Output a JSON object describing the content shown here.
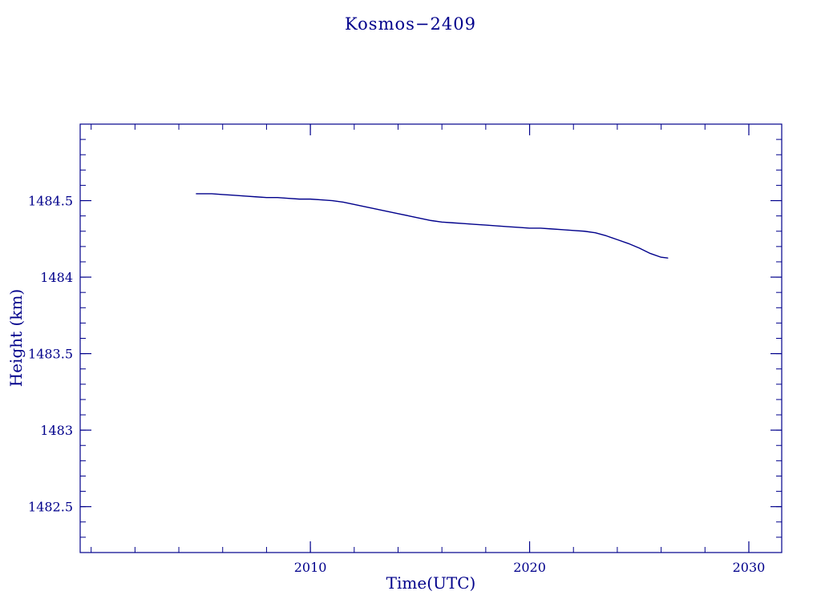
{
  "page": {
    "title": "Kosmos−2409",
    "background": "#ffffff",
    "accent": "#00008B"
  },
  "chart_data": {
    "type": "line",
    "title": "Kosmos−2409",
    "xlabel": "Time(UTC)",
    "ylabel": "Height (km)",
    "xlim": [
      1999.5,
      2031.5
    ],
    "ylim": [
      1482.2,
      1485.0
    ],
    "x_ticks": [
      2010,
      2020,
      2030
    ],
    "x_minor_step": 2,
    "y_ticks": [
      1482.5,
      1483,
      1483.5,
      1484,
      1484.5
    ],
    "y_minor_step": 0.1,
    "grid": false,
    "legend": null,
    "line_color": "#00008B",
    "frame_color": "#00008B",
    "series": [
      {
        "name": "height",
        "x": [
          2004.8,
          2005.5,
          2006.0,
          2006.5,
          2007.0,
          2007.5,
          2008.0,
          2008.5,
          2009.0,
          2009.5,
          2010.0,
          2010.5,
          2011.0,
          2011.5,
          2012.0,
          2012.5,
          2013.0,
          2013.5,
          2014.0,
          2014.5,
          2015.0,
          2015.5,
          2016.0,
          2016.5,
          2017.0,
          2017.5,
          2018.0,
          2018.5,
          2019.0,
          2019.5,
          2020.0,
          2020.5,
          2021.0,
          2021.5,
          2022.0,
          2022.5,
          2023.0,
          2023.5,
          2024.0,
          2024.5,
          2025.0,
          2025.5,
          2026.0,
          2026.3
        ],
        "y": [
          1484.545,
          1484.545,
          1484.54,
          1484.535,
          1484.53,
          1484.525,
          1484.52,
          1484.52,
          1484.515,
          1484.51,
          1484.51,
          1484.505,
          1484.5,
          1484.49,
          1484.475,
          1484.46,
          1484.445,
          1484.43,
          1484.415,
          1484.4,
          1484.385,
          1484.37,
          1484.36,
          1484.355,
          1484.35,
          1484.345,
          1484.34,
          1484.335,
          1484.33,
          1484.325,
          1484.32,
          1484.32,
          1484.315,
          1484.31,
          1484.305,
          1484.3,
          1484.29,
          1484.27,
          1484.245,
          1484.22,
          1484.19,
          1484.155,
          1484.13,
          1484.125
        ]
      }
    ]
  }
}
